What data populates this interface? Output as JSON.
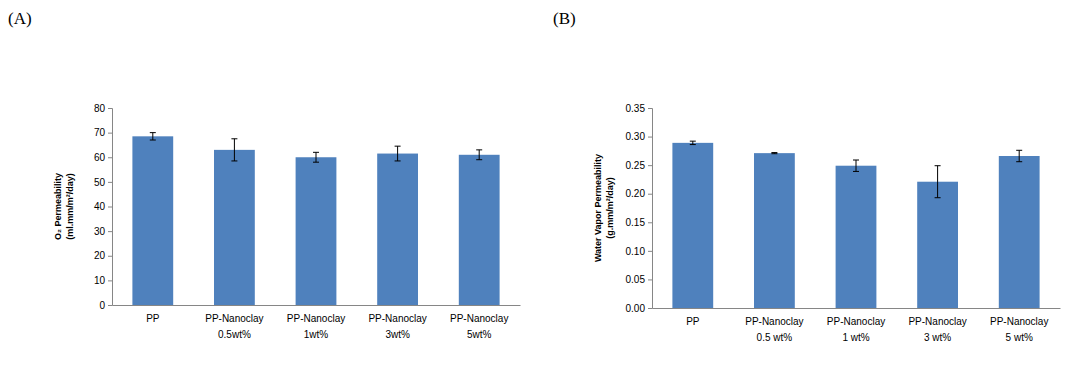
{
  "chart_data": [
    {
      "type": "bar",
      "title": "(A)",
      "y_label": "O₂ Permeability (ml.mm/m²/day)",
      "categories": [
        "PP",
        "PP-Nanoclay 0.5wt%",
        "PP-Nanoclay 1wt%",
        "PP-Nanoclay 3wt%",
        "PP-Nanoclay 5wt%"
      ],
      "values": [
        68.5,
        63,
        60,
        61.5,
        61
      ],
      "errors": [
        1.5,
        4.5,
        2,
        3,
        2
      ],
      "color": "#4f81bd",
      "ylim": [
        0,
        80
      ],
      "yticks": [
        0,
        10,
        20,
        30,
        40,
        50,
        60,
        70,
        80
      ],
      "grid": false
    },
    {
      "type": "bar",
      "title": "(B)",
      "y_label": "Water Vapor Permeability (g.mm/m²/day)",
      "categories": [
        "PP",
        "PP-Nanoclay 0.5 wt%",
        "PP-Nanoclay 1 wt%",
        "PP-Nanoclay 3 wt%",
        "PP-Nanoclay 5 wt%"
      ],
      "values": [
        0.289,
        0.271,
        0.249,
        0.221,
        0.266
      ],
      "errors": [
        0.003,
        0.001,
        0.01,
        0.028,
        0.01
      ],
      "color": "#4f81bd",
      "ylim": [
        0,
        0.35
      ],
      "yticks": [
        {
          "value": 0,
          "label": "0.00"
        },
        {
          "value": 0.05,
          "label": "0.05"
        },
        {
          "value": 0.1,
          "label": "0.10"
        },
        {
          "value": 0.15,
          "label": "0.15"
        },
        {
          "value": 0.2,
          "label": "0.20"
        },
        {
          "value": 0.25,
          "label": "0.25"
        },
        {
          "value": 0.3,
          "label": "0.30"
        },
        {
          "value": 0.35,
          "label": "0.35"
        }
      ],
      "grid": false
    }
  ]
}
